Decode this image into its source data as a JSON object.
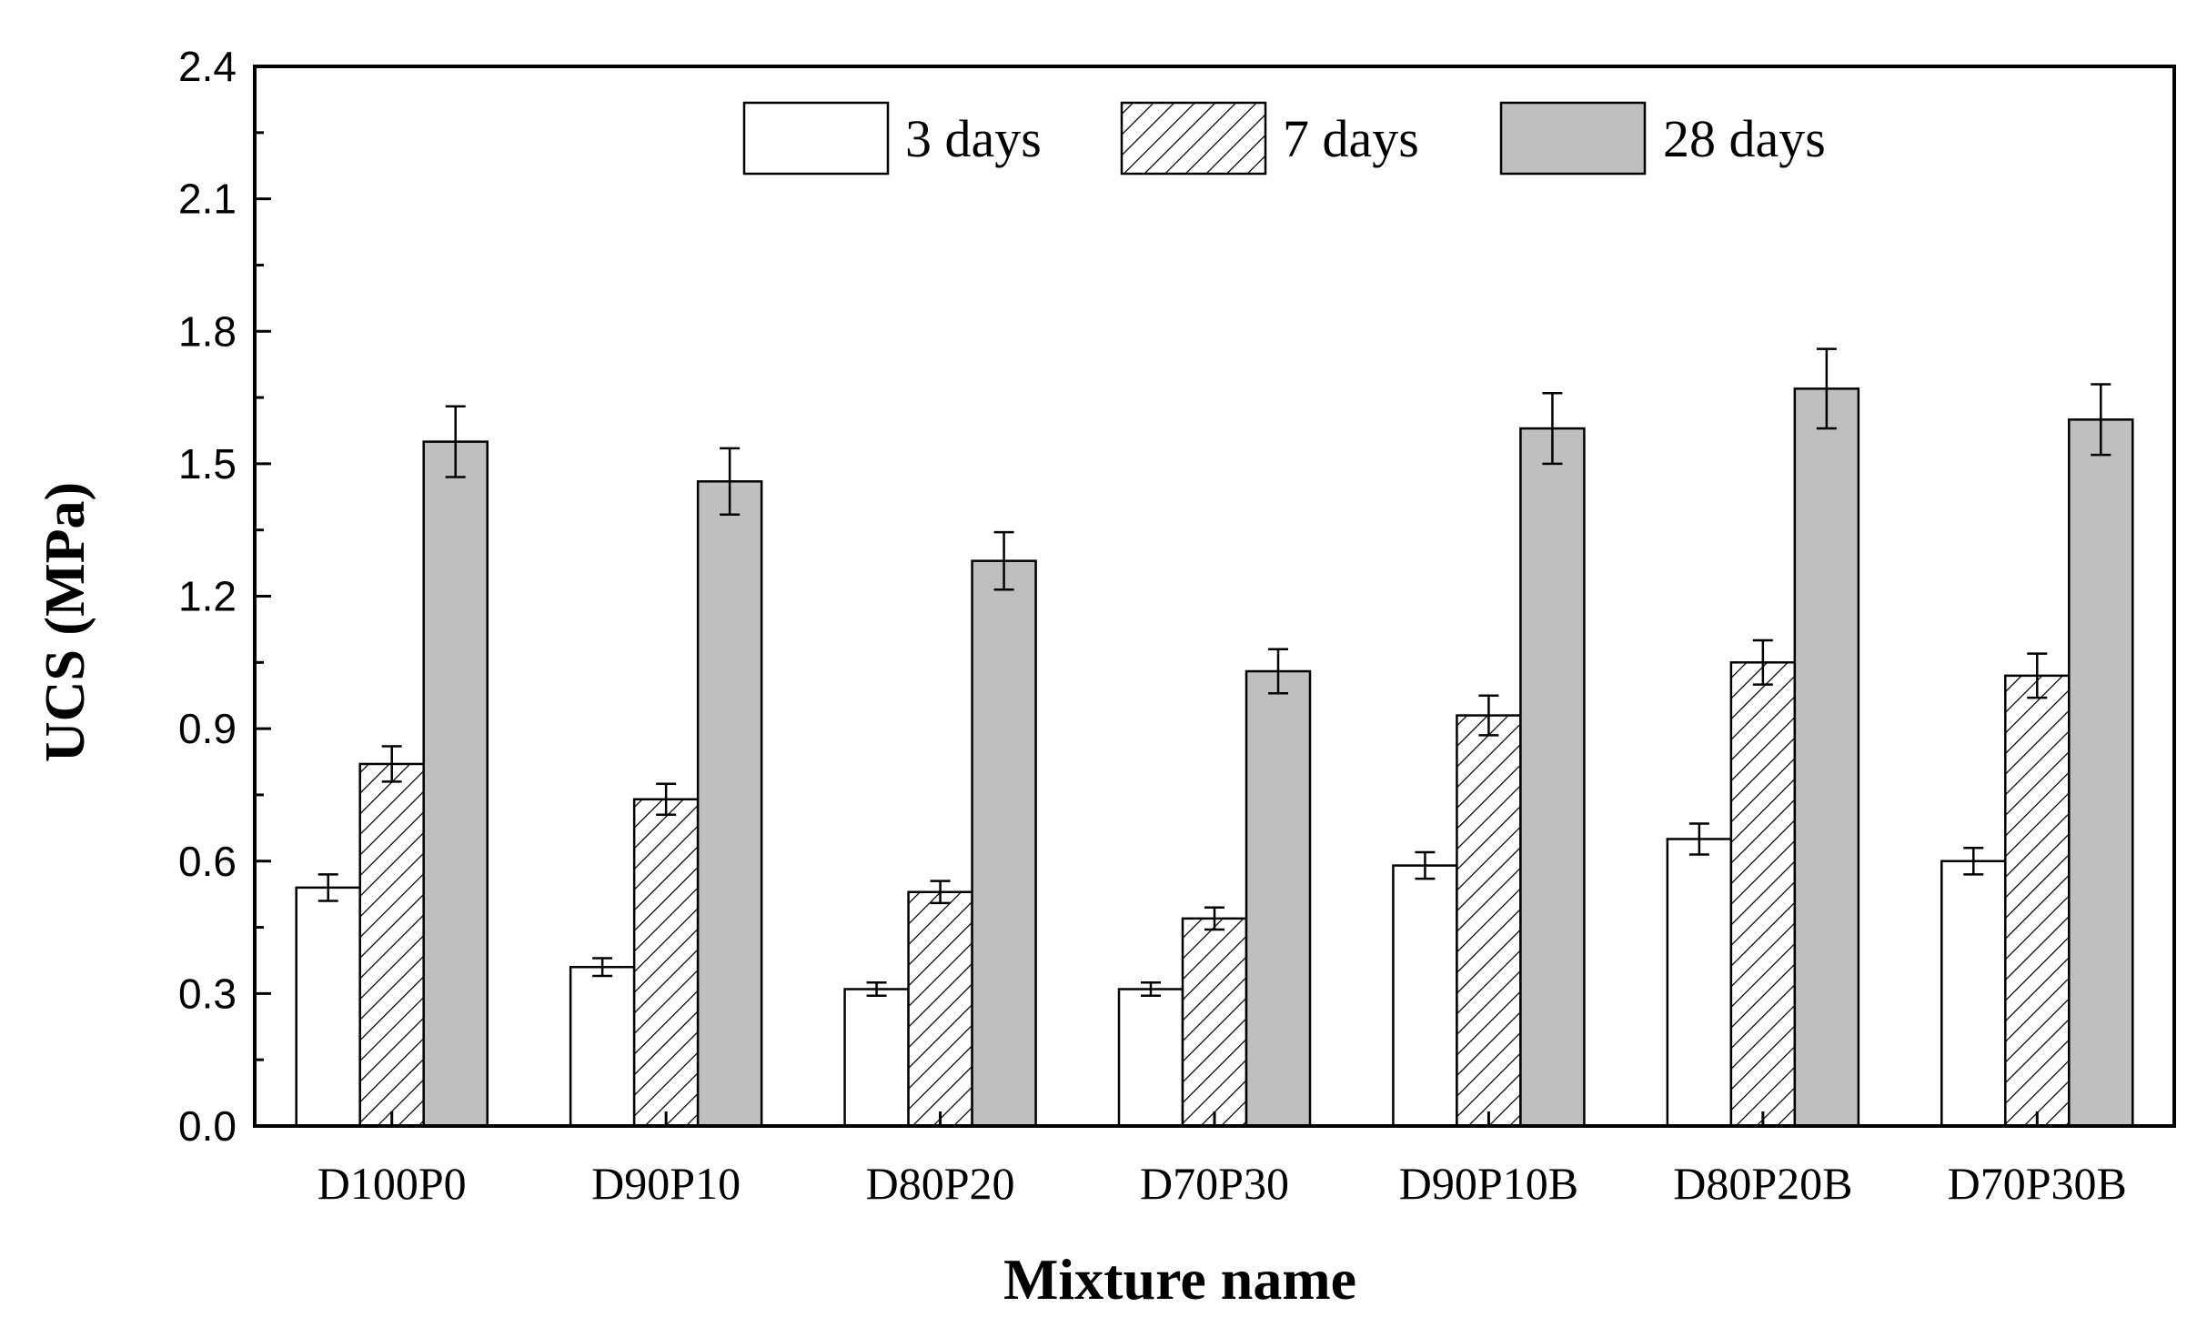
{
  "chart_data": {
    "type": "bar",
    "xlabel": "Mixture name",
    "ylabel": "UCS (MPa)",
    "ylim": [
      0,
      2.4
    ],
    "yticks": [
      "0.0",
      "0.3",
      "0.6",
      "0.9",
      "1.2",
      "1.5",
      "1.8",
      "2.1",
      "2.4"
    ],
    "categories": [
      "D100P0",
      "D90P10",
      "D80P20",
      "D70P30",
      "D90P10B",
      "D80P20B",
      "D70P30B"
    ],
    "legend_position": "top",
    "grid": false,
    "series": [
      {
        "name": "3 days",
        "fill": "white",
        "color": "#ffffff",
        "values": [
          0.54,
          0.36,
          0.31,
          0.31,
          0.59,
          0.65,
          0.6
        ],
        "errors": [
          0.03,
          0.02,
          0.015,
          0.015,
          0.03,
          0.035,
          0.03
        ]
      },
      {
        "name": "7 days",
        "fill": "hatched",
        "color": "#ffffff",
        "values": [
          0.82,
          0.74,
          0.53,
          0.47,
          0.93,
          1.05,
          1.02
        ],
        "errors": [
          0.04,
          0.035,
          0.025,
          0.025,
          0.045,
          0.05,
          0.05
        ]
      },
      {
        "name": "28 days",
        "fill": "gray",
        "color": "#bfbfbf",
        "values": [
          1.55,
          1.46,
          1.28,
          1.03,
          1.58,
          1.67,
          1.6
        ],
        "errors": [
          0.08,
          0.075,
          0.065,
          0.05,
          0.08,
          0.09,
          0.08
        ]
      }
    ]
  }
}
